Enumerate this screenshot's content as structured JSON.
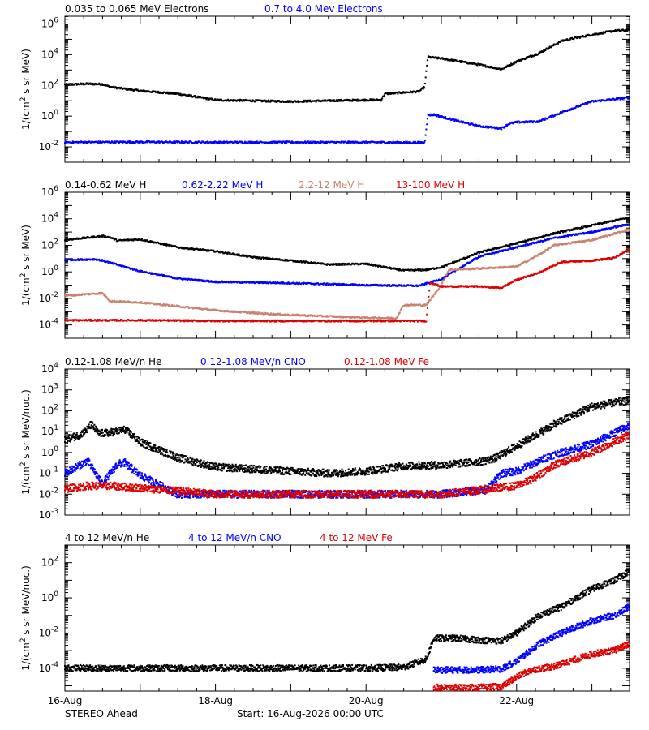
{
  "footer": {
    "spacecraft": "STEREO Ahead",
    "start": "Start: 16-Aug-2026 00:00 UTC"
  },
  "x_axis": {
    "type": "time",
    "unit": "days since start",
    "range": [
      0,
      7.5
    ],
    "ticks": [
      {
        "value": 0,
        "label": "16-Aug"
      },
      {
        "value": 2,
        "label": "18-Aug"
      },
      {
        "value": 4,
        "label": "20-Aug"
      },
      {
        "value": 6,
        "label": "22-Aug"
      }
    ]
  },
  "chart_data": [
    {
      "type": "scatter",
      "ylabel_main": "1/(cm",
      "ylabel_sup": "2",
      "ylabel_tail": " s sr MeV)",
      "yscale": "log",
      "ylog_range": [
        -3,
        6.5
      ],
      "ytick_exponents": [
        -2,
        0,
        2,
        4,
        6
      ],
      "legend": [
        {
          "name": "0.035 to 0.065 MeV Electrons",
          "color": "#000000"
        },
        {
          "name": "0.7 to 4.0 Mev Electrons",
          "color": "#0000ff"
        }
      ],
      "series": [
        {
          "color": "#000000",
          "points": [
            [
              0,
              2.05
            ],
            [
              0.3,
              2.1
            ],
            [
              0.5,
              2.08
            ],
            [
              0.6,
              1.9
            ],
            [
              1.0,
              1.65
            ],
            [
              1.5,
              1.45
            ],
            [
              2.0,
              1.05
            ],
            [
              3.0,
              0.95
            ],
            [
              4.0,
              1.05
            ],
            [
              4.2,
              1.05
            ],
            [
              4.25,
              1.45
            ],
            [
              4.7,
              1.6
            ],
            [
              4.78,
              1.9
            ],
            [
              4.82,
              3.85
            ],
            [
              5.0,
              3.75
            ],
            [
              5.5,
              3.35
            ],
            [
              5.8,
              3.05
            ],
            [
              6.0,
              3.55
            ],
            [
              6.3,
              4.1
            ],
            [
              6.6,
              4.9
            ],
            [
              7.0,
              5.3
            ],
            [
              7.3,
              5.55
            ],
            [
              7.5,
              5.6
            ]
          ]
        },
        {
          "color": "#0000ff",
          "points": [
            [
              0,
              -1.7
            ],
            [
              1.0,
              -1.68
            ],
            [
              2.0,
              -1.7
            ],
            [
              3.0,
              -1.7
            ],
            [
              4.0,
              -1.7
            ],
            [
              4.78,
              -1.72
            ],
            [
              4.82,
              0.05
            ],
            [
              4.9,
              0.1
            ],
            [
              5.2,
              -0.3
            ],
            [
              5.5,
              -0.65
            ],
            [
              5.8,
              -0.8
            ],
            [
              5.9,
              -0.5
            ],
            [
              6.0,
              -0.4
            ],
            [
              6.3,
              -0.35
            ],
            [
              6.6,
              0.25
            ],
            [
              7.0,
              0.95
            ],
            [
              7.5,
              1.2
            ]
          ]
        }
      ]
    },
    {
      "type": "scatter",
      "ylabel_main": "1/(cm",
      "ylabel_sup": "2",
      "ylabel_tail": " s sr MeV)",
      "yscale": "log",
      "ylog_range": [
        -5,
        6
      ],
      "ytick_exponents": [
        -4,
        -2,
        0,
        2,
        4,
        6
      ],
      "legend": [
        {
          "name": "0.14-0.62 MeV H",
          "color": "#000000"
        },
        {
          "name": "0.62-2.22 MeV H",
          "color": "#0000ff"
        },
        {
          "name": "2.2-12 MeV H",
          "color": "#c8826e"
        },
        {
          "name": "13-100 MeV H",
          "color": "#dd0000"
        }
      ],
      "series": [
        {
          "color": "#000000",
          "points": [
            [
              0,
              2.4
            ],
            [
              0.5,
              2.7
            ],
            [
              0.6,
              2.6
            ],
            [
              0.7,
              2.35
            ],
            [
              1.0,
              2.45
            ],
            [
              1.5,
              1.85
            ],
            [
              2.0,
              1.55
            ],
            [
              2.5,
              1.1
            ],
            [
              3.0,
              0.85
            ],
            [
              3.5,
              0.55
            ],
            [
              4.0,
              0.6
            ],
            [
              4.5,
              0.1
            ],
            [
              4.8,
              0.15
            ],
            [
              5.0,
              0.35
            ],
            [
              5.5,
              1.45
            ],
            [
              6.0,
              2.15
            ],
            [
              6.5,
              2.9
            ],
            [
              7.0,
              3.5
            ],
            [
              7.5,
              4.1
            ]
          ]
        },
        {
          "color": "#0000ff",
          "points": [
            [
              0,
              0.9
            ],
            [
              0.4,
              0.95
            ],
            [
              0.5,
              0.85
            ],
            [
              1.0,
              0.05
            ],
            [
              1.5,
              -0.5
            ],
            [
              2.0,
              -0.75
            ],
            [
              3.0,
              -0.85
            ],
            [
              4.0,
              -1.0
            ],
            [
              4.7,
              -1.05
            ],
            [
              5.0,
              -0.55
            ],
            [
              5.5,
              1.15
            ],
            [
              6.0,
              1.85
            ],
            [
              6.5,
              2.55
            ],
            [
              7.0,
              3.0
            ],
            [
              7.5,
              3.6
            ]
          ]
        },
        {
          "color": "#c8826e",
          "points": [
            [
              0,
              -1.8
            ],
            [
              0.5,
              -1.6
            ],
            [
              0.6,
              -2.2
            ],
            [
              1.0,
              -2.3
            ],
            [
              1.5,
              -2.6
            ],
            [
              2.0,
              -2.9
            ],
            [
              2.5,
              -3.1
            ],
            [
              3.0,
              -3.25
            ],
            [
              4.0,
              -3.45
            ],
            [
              4.4,
              -3.5
            ],
            [
              4.5,
              -2.5
            ],
            [
              4.8,
              -2.5
            ],
            [
              5.0,
              -1.0
            ],
            [
              5.1,
              0.15
            ],
            [
              5.5,
              0.25
            ],
            [
              6.0,
              0.4
            ],
            [
              6.3,
              1.3
            ],
            [
              6.5,
              2.0
            ],
            [
              7.0,
              2.4
            ],
            [
              7.5,
              3.2
            ]
          ]
        },
        {
          "color": "#dd0000",
          "points": [
            [
              0,
              -3.65
            ],
            [
              1.0,
              -3.65
            ],
            [
              2.0,
              -3.7
            ],
            [
              3.0,
              -3.7
            ],
            [
              4.0,
              -3.7
            ],
            [
              4.8,
              -3.7
            ],
            [
              4.85,
              -0.8
            ],
            [
              5.0,
              -1.1
            ],
            [
              5.5,
              -1.1
            ],
            [
              5.8,
              -1.2
            ],
            [
              6.0,
              -0.6
            ],
            [
              6.3,
              -0.05
            ],
            [
              6.6,
              0.75
            ],
            [
              7.0,
              0.85
            ],
            [
              7.3,
              1.05
            ],
            [
              7.5,
              1.7
            ]
          ]
        }
      ]
    },
    {
      "type": "scatter",
      "ylabel_main": "1/(cm",
      "ylabel_sup": "2",
      "ylabel_tail": " s sr MeV/nuc.)",
      "yscale": "log",
      "ylog_range": [
        -3,
        4
      ],
      "ytick_exponents": [
        -3,
        -2,
        -1,
        0,
        1,
        2,
        3,
        4
      ],
      "legend": [
        {
          "name": "0.12-1.08 MeV/n He",
          "color": "#000000"
        },
        {
          "name": "0.12-1.08 MeV/n CNO",
          "color": "#0000ff"
        },
        {
          "name": "0.12-1.08 MeV Fe",
          "color": "#dd0000"
        }
      ],
      "series": [
        {
          "color": "#000000",
          "points": [
            [
              0,
              0.6
            ],
            [
              0.2,
              0.85
            ],
            [
              0.3,
              1.1
            ],
            [
              0.35,
              1.35
            ],
            [
              0.45,
              0.9
            ],
            [
              0.6,
              0.95
            ],
            [
              0.8,
              1.1
            ],
            [
              1.0,
              0.5
            ],
            [
              1.5,
              -0.25
            ],
            [
              2.0,
              -0.7
            ],
            [
              2.5,
              -0.8
            ],
            [
              3.0,
              -0.9
            ],
            [
              3.5,
              -1.0
            ],
            [
              4.0,
              -0.9
            ],
            [
              4.5,
              -0.65
            ],
            [
              5.0,
              -0.6
            ],
            [
              5.5,
              -0.45
            ],
            [
              5.7,
              -0.3
            ],
            [
              6.0,
              0.3
            ],
            [
              6.5,
              1.35
            ],
            [
              7.0,
              2.2
            ],
            [
              7.5,
              2.5
            ]
          ]
        },
        {
          "color": "#0000ff",
          "points": [
            [
              0,
              -1.0
            ],
            [
              0.3,
              -0.4
            ],
            [
              0.5,
              -1.5
            ],
            [
              0.7,
              -0.55
            ],
            [
              0.8,
              -0.5
            ],
            [
              1.0,
              -1.1
            ],
            [
              1.5,
              -2.0
            ],
            [
              2.0,
              -2.0
            ],
            [
              3.0,
              -2.0
            ],
            [
              4.0,
              -2.0
            ],
            [
              5.0,
              -2.0
            ],
            [
              5.6,
              -1.8
            ],
            [
              5.8,
              -1.0
            ],
            [
              6.0,
              -0.9
            ],
            [
              6.3,
              -0.4
            ],
            [
              6.5,
              -0.1
            ],
            [
              7.0,
              0.4
            ],
            [
              7.5,
              1.3
            ]
          ]
        },
        {
          "color": "#dd0000",
          "points": [
            [
              0,
              -1.75
            ],
            [
              0.3,
              -1.6
            ],
            [
              0.6,
              -1.6
            ],
            [
              1.0,
              -1.7
            ],
            [
              2.0,
              -2.0
            ],
            [
              3.0,
              -2.0
            ],
            [
              4.0,
              -2.0
            ],
            [
              5.0,
              -2.0
            ],
            [
              6.0,
              -1.6
            ],
            [
              6.2,
              -1.3
            ],
            [
              6.5,
              -0.6
            ],
            [
              7.0,
              0.0
            ],
            [
              7.5,
              0.85
            ]
          ]
        }
      ]
    },
    {
      "type": "scatter",
      "ylabel_main": "1/(cm",
      "ylabel_sup": "2",
      "ylabel_tail": " s sr MeV/nuc.)",
      "yscale": "log",
      "ylog_range": [
        -5.3,
        3
      ],
      "ytick_exponents": [
        -4,
        -2,
        0,
        2
      ],
      "legend": [
        {
          "name": "4 to 12 MeV/n He",
          "color": "#000000"
        },
        {
          "name": "4 to 12 MeV/n CNO",
          "color": "#0000ff"
        },
        {
          "name": "4 to 12 MeV Fe",
          "color": "#dd0000"
        }
      ],
      "series": [
        {
          "color": "#000000",
          "points": [
            [
              0,
              -4.0
            ],
            [
              1.0,
              -4.0
            ],
            [
              2.0,
              -4.0
            ],
            [
              3.0,
              -4.0
            ],
            [
              4.0,
              -4.0
            ],
            [
              4.5,
              -3.95
            ],
            [
              4.8,
              -3.5
            ],
            [
              4.9,
              -2.3
            ],
            [
              5.2,
              -2.3
            ],
            [
              5.5,
              -2.4
            ],
            [
              5.8,
              -2.45
            ],
            [
              6.0,
              -2.0
            ],
            [
              6.3,
              -1.0
            ],
            [
              6.6,
              -0.5
            ],
            [
              7.0,
              0.5
            ],
            [
              7.3,
              1.0
            ],
            [
              7.5,
              1.5
            ]
          ]
        },
        {
          "color": "#0000ff",
          "points": [
            [
              4.9,
              -4.1
            ],
            [
              5.5,
              -4.1
            ],
            [
              5.8,
              -4.05
            ],
            [
              6.0,
              -3.6
            ],
            [
              6.3,
              -2.6
            ],
            [
              6.6,
              -2.0
            ],
            [
              7.0,
              -1.3
            ],
            [
              7.3,
              -1.0
            ],
            [
              7.5,
              -0.5
            ]
          ]
        },
        {
          "color": "#dd0000",
          "points": [
            [
              4.9,
              -5.1
            ],
            [
              5.5,
              -5.1
            ],
            [
              5.8,
              -5.05
            ],
            [
              6.0,
              -4.5
            ],
            [
              6.2,
              -4.1
            ],
            [
              6.5,
              -3.9
            ],
            [
              7.0,
              -3.2
            ],
            [
              7.3,
              -3.0
            ],
            [
              7.5,
              -2.6
            ]
          ]
        }
      ]
    }
  ]
}
